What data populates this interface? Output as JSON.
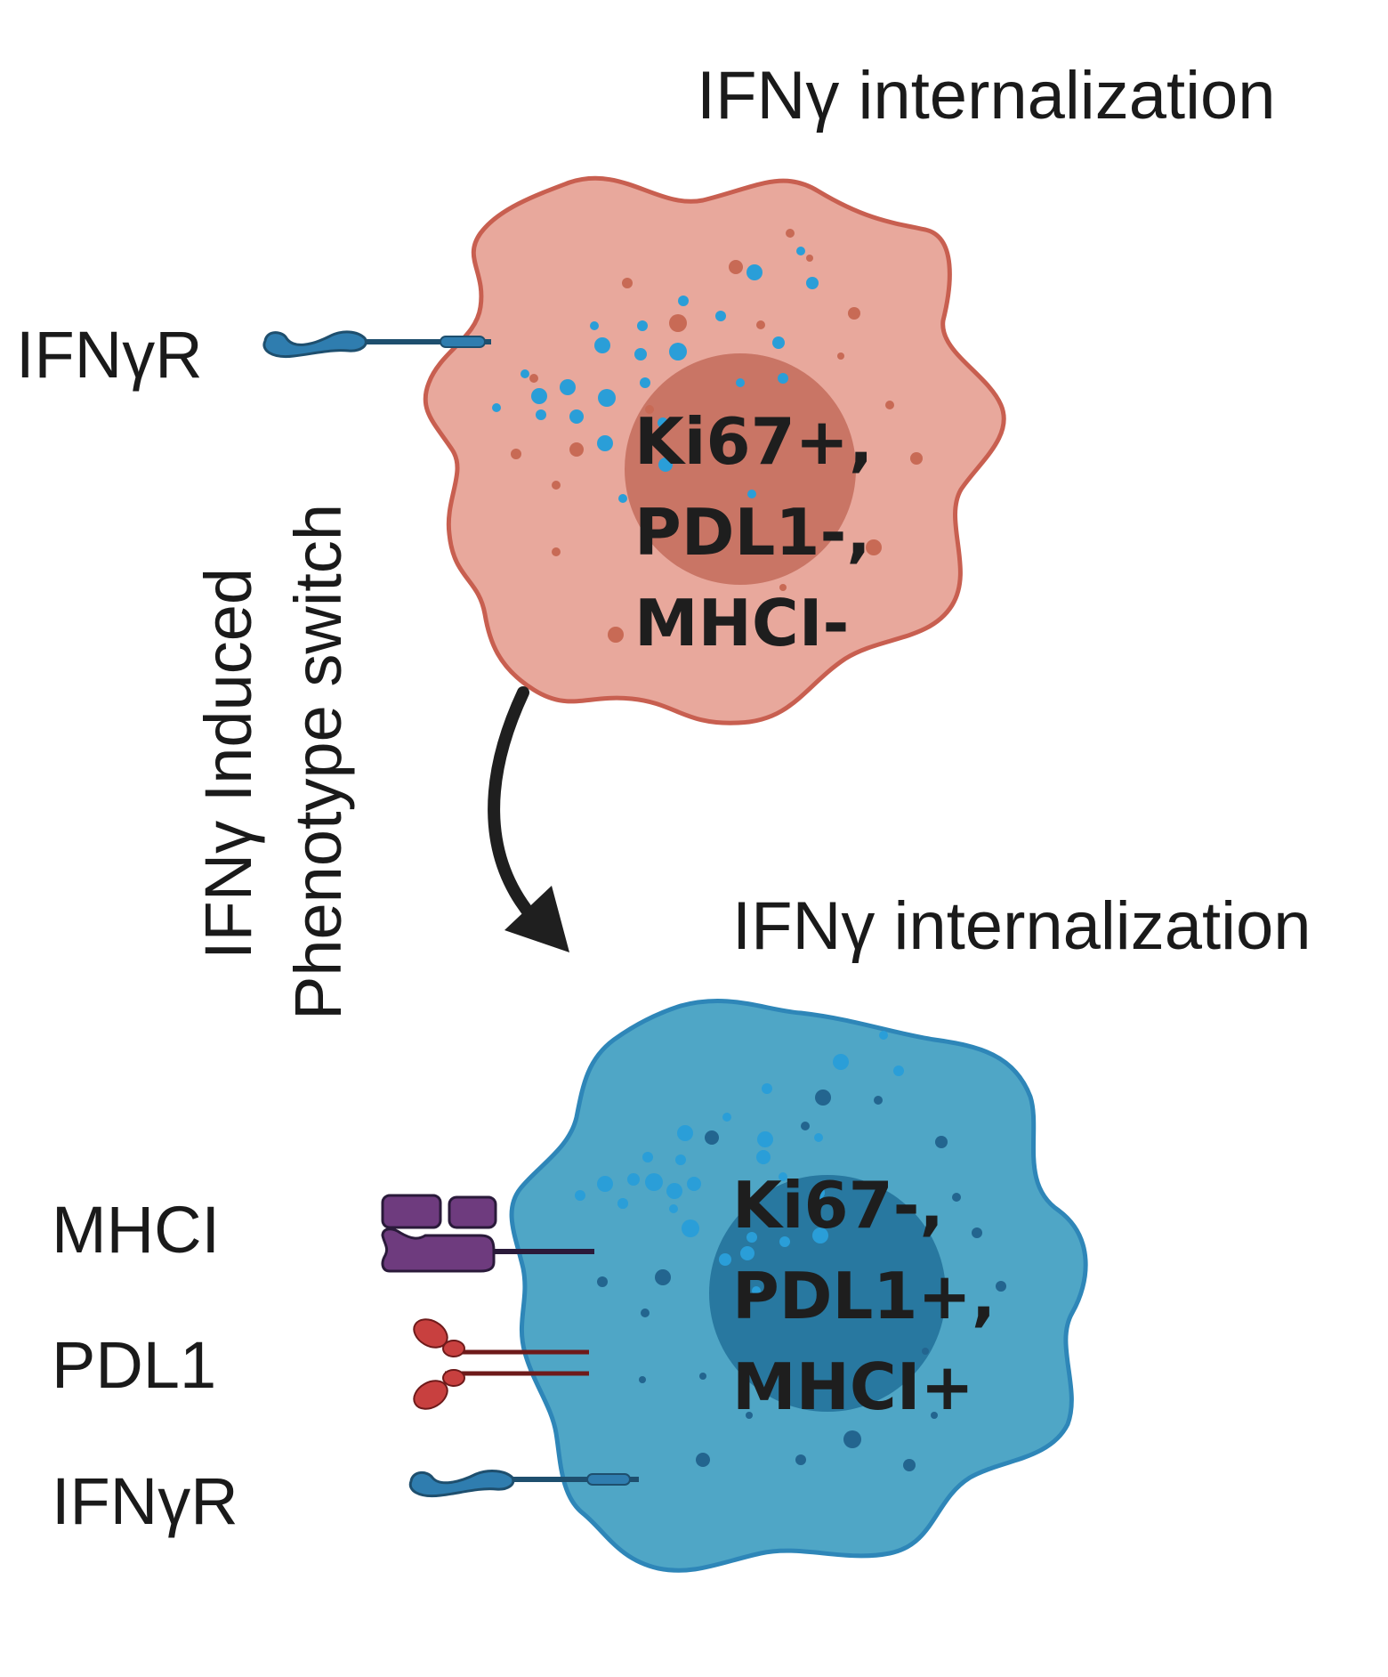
{
  "top_cell": {
    "title": "IFNγ internalization",
    "receptor_label": "IFNγR",
    "markers": [
      "Ki67+,",
      "PDL1-,",
      "MHCI-"
    ],
    "colors": {
      "body": "#E8A89C",
      "outline": "#C85F50",
      "nucleus": "#C97565",
      "dots": "#C86A55"
    }
  },
  "transition": {
    "label_line1": "IFNγ Induced",
    "label_line2": "Phenotype switch"
  },
  "bottom_cell": {
    "title": "IFNγ internalization",
    "receptor_labels": {
      "mhci": "MHCI",
      "pdl1": "PDL1",
      "ifngr": "IFNγR"
    },
    "markers": [
      "Ki67-,",
      "PDL1+,",
      "MHCI+"
    ],
    "colors": {
      "body": "#4FA6C6",
      "outline": "#2E86B8",
      "nucleus": "#2878A0",
      "dots": "#23658F"
    }
  },
  "particle_color": "#2A9ED8",
  "receptor_colors": {
    "ifngr": "#2F7DAF",
    "mhci": "#6E3B7E",
    "pdl1": "#C8403F",
    "pdl1_stalk": "#6E1A1A"
  }
}
